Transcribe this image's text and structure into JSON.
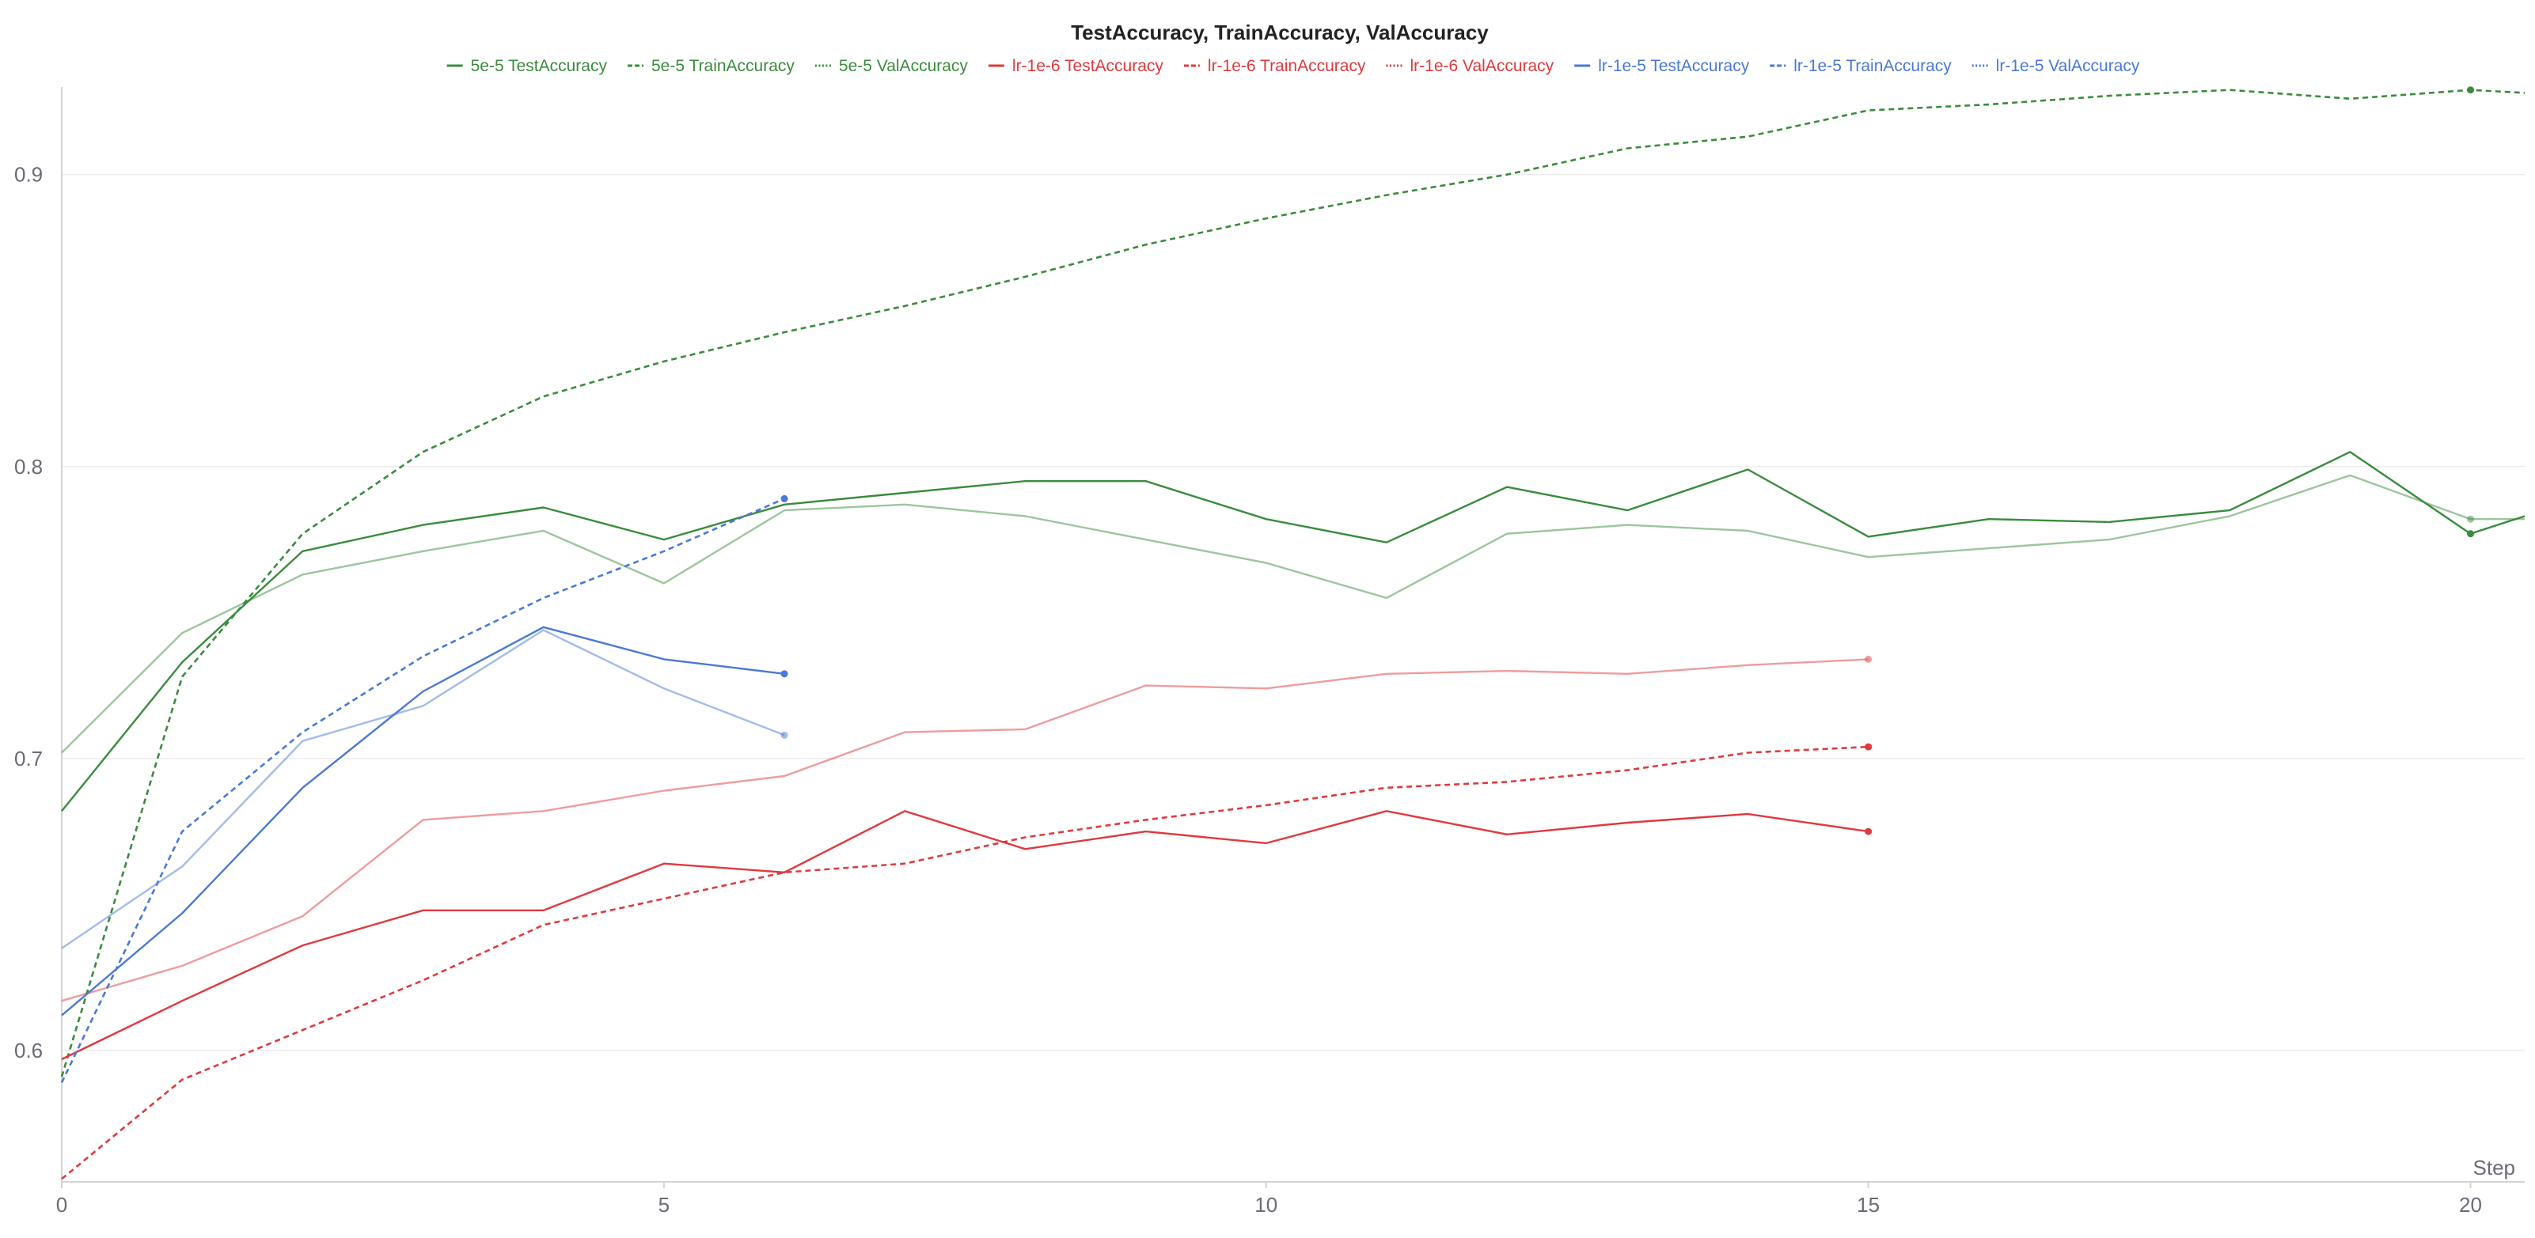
{
  "chart_data": {
    "type": "line",
    "title": "TestAccuracy, TrainAccuracy, ValAccuracy",
    "xlabel": "Step",
    "ylabel": "",
    "xlim": [
      0,
      20.45
    ],
    "ylim": [
      0.555,
      0.93
    ],
    "x_ticks": [
      0,
      5,
      10,
      15,
      20
    ],
    "y_ticks": [
      0.6,
      0.7,
      0.8,
      0.9
    ],
    "grid": true,
    "legend_position": "top",
    "series": [
      {
        "name": "5e-5 TestAccuracy",
        "color": "#3b8b3e",
        "style": "solid",
        "opacity": 1,
        "x": [
          0,
          1,
          2,
          3,
          4,
          5,
          6,
          7,
          8,
          9,
          10,
          11,
          12,
          13,
          14,
          15,
          16,
          17,
          18,
          19,
          20,
          20.45
        ],
        "y": [
          0.682,
          0.733,
          0.771,
          0.78,
          0.786,
          0.775,
          0.787,
          0.791,
          0.795,
          0.795,
          0.782,
          0.774,
          0.793,
          0.785,
          0.799,
          0.776,
          0.782,
          0.781,
          0.785,
          0.805,
          0.777,
          0.783
        ]
      },
      {
        "name": "5e-5 TrainAccuracy",
        "color": "#3b8b3e",
        "style": "dashed",
        "opacity": 1,
        "x": [
          0,
          1,
          2,
          3,
          4,
          5,
          6,
          7,
          8,
          9,
          10,
          11,
          12,
          13,
          14,
          15,
          16,
          17,
          18,
          19,
          20,
          20.45
        ],
        "y": [
          0.591,
          0.728,
          0.777,
          0.805,
          0.824,
          0.836,
          0.846,
          0.855,
          0.865,
          0.876,
          0.885,
          0.893,
          0.9,
          0.909,
          0.913,
          0.922,
          0.924,
          0.927,
          0.929,
          0.926,
          0.929,
          0.928
        ]
      },
      {
        "name": "5e-5 ValAccuracy",
        "color": "#3b8b3e",
        "style": "solid",
        "opacity": 0.5,
        "x": [
          0,
          1,
          2,
          3,
          4,
          5,
          6,
          7,
          8,
          9,
          10,
          11,
          12,
          13,
          14,
          15,
          16,
          17,
          18,
          19,
          20,
          20.45
        ],
        "y": [
          0.702,
          0.743,
          0.763,
          0.771,
          0.778,
          0.76,
          0.785,
          0.787,
          0.783,
          0.775,
          0.767,
          0.755,
          0.777,
          0.78,
          0.778,
          0.769,
          0.772,
          0.775,
          0.783,
          0.797,
          0.782,
          0.782
        ]
      },
      {
        "name": "lr-1e-6 TestAccuracy",
        "color": "#e0393e",
        "style": "solid",
        "opacity": 1,
        "x": [
          0,
          1,
          2,
          3,
          4,
          5,
          6,
          7,
          8,
          9,
          10,
          11,
          12,
          13,
          14,
          15
        ],
        "y": [
          0.597,
          0.617,
          0.636,
          0.648,
          0.648,
          0.664,
          0.661,
          0.682,
          0.669,
          0.675,
          0.671,
          0.682,
          0.674,
          0.678,
          0.681,
          0.675
        ]
      },
      {
        "name": "lr-1e-6 TrainAccuracy",
        "color": "#e0393e",
        "style": "dashed",
        "opacity": 1,
        "x": [
          0,
          1,
          2,
          3,
          4,
          5,
          6,
          7,
          8,
          9,
          10,
          11,
          12,
          13,
          14,
          15
        ],
        "y": [
          0.556,
          0.59,
          0.607,
          0.624,
          0.643,
          0.652,
          0.661,
          0.664,
          0.673,
          0.679,
          0.684,
          0.69,
          0.692,
          0.696,
          0.702,
          0.704
        ]
      },
      {
        "name": "lr-1e-6 ValAccuracy",
        "color": "#e0393e",
        "style": "solid",
        "opacity": 0.5,
        "x": [
          0,
          1,
          2,
          3,
          4,
          5,
          6,
          7,
          8,
          9,
          10,
          11,
          12,
          13,
          14,
          15
        ],
        "y": [
          0.617,
          0.629,
          0.646,
          0.679,
          0.682,
          0.689,
          0.694,
          0.709,
          0.71,
          0.725,
          0.724,
          0.729,
          0.73,
          0.729,
          0.732,
          0.734
        ]
      },
      {
        "name": "lr-1e-5 TestAccuracy",
        "color": "#4a78d6",
        "style": "solid",
        "opacity": 1,
        "x": [
          0,
          1,
          2,
          3,
          4,
          5,
          6
        ],
        "y": [
          0.612,
          0.647,
          0.69,
          0.723,
          0.745,
          0.734,
          0.729
        ]
      },
      {
        "name": "lr-1e-5 TrainAccuracy",
        "color": "#4a78d6",
        "style": "dashed",
        "opacity": 1,
        "x": [
          0,
          1,
          2,
          3,
          4,
          5,
          6
        ],
        "y": [
          0.589,
          0.675,
          0.709,
          0.735,
          0.755,
          0.771,
          0.789
        ]
      },
      {
        "name": "lr-1e-5 ValAccuracy",
        "color": "#4a78d6",
        "style": "solid",
        "opacity": 0.5,
        "x": [
          0,
          1,
          2,
          3,
          4,
          5,
          6
        ],
        "y": [
          0.635,
          0.663,
          0.706,
          0.718,
          0.744,
          0.724,
          0.708
        ]
      }
    ]
  }
}
